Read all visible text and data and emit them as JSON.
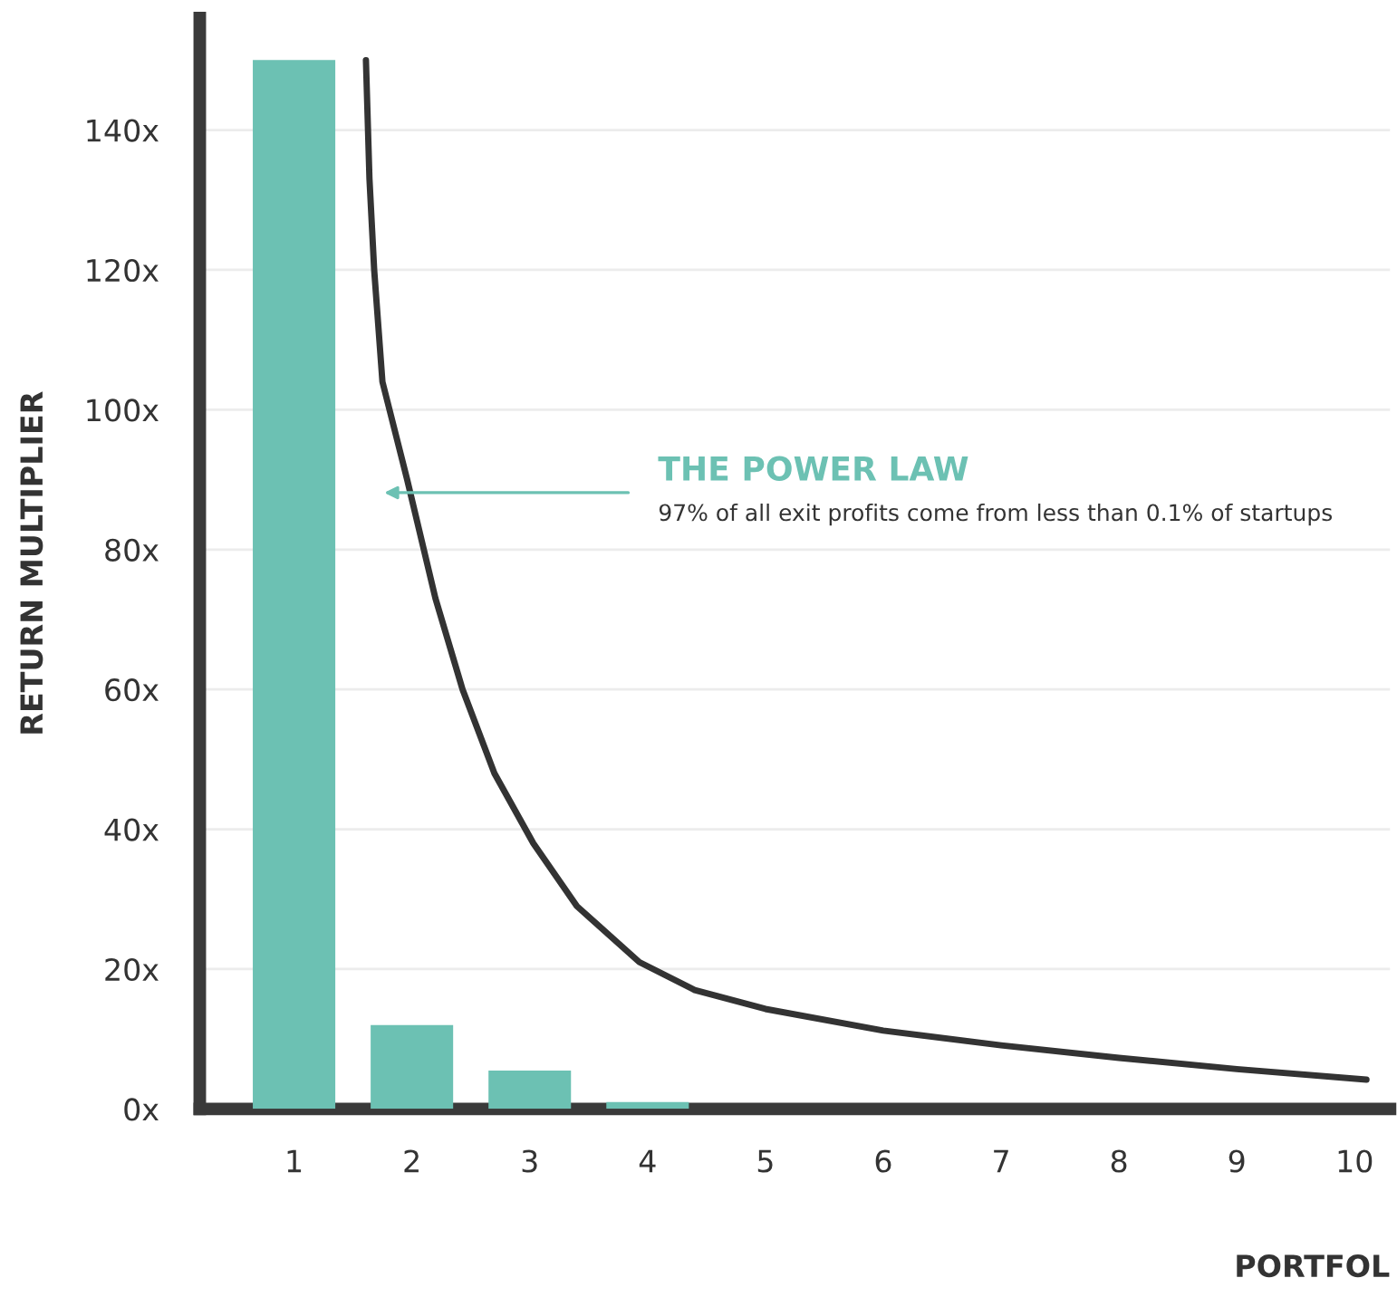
{
  "chart_data": {
    "type": "bar",
    "xlabel": "PORTFOL",
    "ylabel": "RETURN MULTIPLIER",
    "series": [
      {
        "color": "#6cc1b3",
        "x": [
          1,
          2,
          3,
          4
        ],
        "values": [
          150,
          12,
          5.5,
          1
        ]
      },
      {
        "type": "line",
        "color": "#333333",
        "x": [
          1.61,
          1.64,
          1.68,
          1.75,
          1.96,
          2.2,
          2.43,
          2.7,
          3.03,
          3.4,
          3.93,
          4.4,
          5.0,
          6.0,
          7.0,
          8.0,
          9.0,
          10.1
        ],
        "values": [
          150,
          133,
          120,
          104,
          90,
          73,
          60,
          48,
          38,
          29,
          21,
          17,
          14.3,
          11.2,
          9.1,
          7.3,
          5.7,
          4.2
        ]
      }
    ],
    "xlim": [
      0.2,
      10.3
    ],
    "xticks": [
      1,
      2,
      3,
      4,
      5,
      6,
      7,
      8,
      9,
      10
    ],
    "ylim": [
      0,
      156
    ],
    "yticks": [
      {
        "value": 0,
        "label": "0x"
      },
      {
        "value": 20,
        "label": "20x"
      },
      {
        "value": 40,
        "label": "40x"
      },
      {
        "value": 60,
        "label": "60x"
      },
      {
        "value": 80,
        "label": "80x"
      },
      {
        "value": 100,
        "label": "100x"
      },
      {
        "value": 120,
        "label": "120x"
      },
      {
        "value": 140,
        "label": "140x"
      }
    ],
    "grid": "y",
    "marker": "none",
    "line_style": "solid",
    "annotations": [
      "THE POWER LAW",
      "97% of all exit profits come from less than 0.1% of startups"
    ]
  }
}
